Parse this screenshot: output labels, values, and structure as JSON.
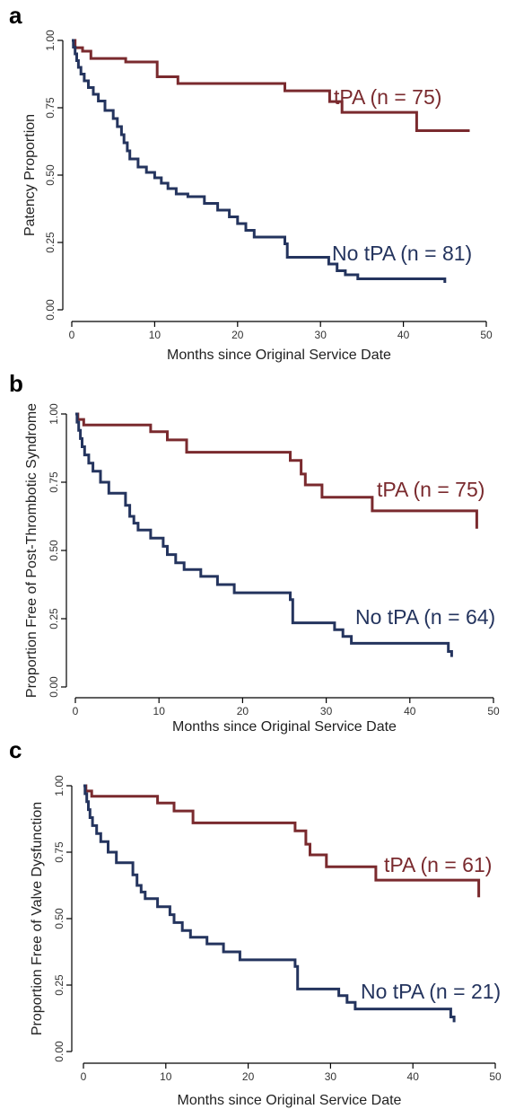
{
  "colors": {
    "tpa": "#7a2a2e",
    "no_tpa": "#24345e"
  },
  "chart_data": [
    {
      "panel": "a",
      "type": "line",
      "step": true,
      "xlabel": "Months since Original Service Date",
      "ylabel": "Patency Proportion",
      "xlim": [
        0,
        50
      ],
      "ylim": [
        0,
        1
      ],
      "xticks": [
        0,
        10,
        20,
        30,
        40,
        50
      ],
      "yticks": [
        "0.00",
        "0.25",
        "0.50",
        "0.75",
        "1.00"
      ],
      "series": [
        {
          "name": "tPA (n = 75)",
          "color": "#7a2a2e",
          "x": [
            0,
            0.4,
            1.3,
            2.3,
            6.5,
            10.3,
            12.8,
            25.7,
            31.1,
            32.6,
            41.6,
            48
          ],
          "y": [
            1.0,
            0.973,
            0.96,
            0.933,
            0.92,
            0.865,
            0.84,
            0.813,
            0.773,
            0.733,
            0.665,
            0.665
          ]
        },
        {
          "name": "No tPA (n = 81)",
          "color": "#24345e",
          "x": [
            0,
            0.2,
            0.4,
            0.6,
            0.8,
            1.1,
            1.5,
            2.0,
            2.6,
            3.2,
            4.0,
            5.0,
            5.5,
            6.0,
            6.3,
            6.7,
            7.0,
            8.0,
            9.0,
            10.0,
            10.8,
            11.6,
            12.6,
            14.0,
            16.0,
            17.6,
            19.0,
            20.0,
            21.0,
            22.0,
            25.7,
            26.0,
            31.0,
            32.0,
            33.0,
            34.5,
            45
          ],
          "y": [
            1.0,
            0.975,
            0.95,
            0.925,
            0.9,
            0.875,
            0.85,
            0.825,
            0.8,
            0.775,
            0.74,
            0.71,
            0.68,
            0.65,
            0.62,
            0.59,
            0.56,
            0.53,
            0.51,
            0.49,
            0.47,
            0.45,
            0.43,
            0.42,
            0.395,
            0.37,
            0.345,
            0.32,
            0.295,
            0.27,
            0.245,
            0.195,
            0.17,
            0.145,
            0.13,
            0.115,
            0.1
          ]
        }
      ]
    },
    {
      "panel": "b",
      "type": "line",
      "step": true,
      "xlabel": "Months since Original Service Date",
      "ylabel": "Proportion Free of Post-Thrombotic Syndrome",
      "xlim": [
        0,
        50
      ],
      "ylim": [
        0,
        1
      ],
      "xticks": [
        0,
        10,
        20,
        30,
        40,
        50
      ],
      "yticks": [
        "0.00",
        "0.25",
        "0.50",
        "0.75",
        "1.00"
      ],
      "series": [
        {
          "name": "tPA (n = 75)",
          "color": "#7a2a2e",
          "x": [
            0,
            0.3,
            1.0,
            9.0,
            11.0,
            13.3,
            25.7,
            27.0,
            27.5,
            29.5,
            35.5,
            48
          ],
          "y": [
            1.0,
            0.98,
            0.96,
            0.935,
            0.905,
            0.86,
            0.83,
            0.78,
            0.74,
            0.695,
            0.645,
            0.58
          ]
        },
        {
          "name": "No tPA (n = 64)",
          "color": "#24345e",
          "x": [
            0,
            0.2,
            0.4,
            0.6,
            0.8,
            1.1,
            1.6,
            2.1,
            3.0,
            4.0,
            6.0,
            6.5,
            7.0,
            7.5,
            9.0,
            10.5,
            11.0,
            12.0,
            13.0,
            15.0,
            17.0,
            19.0,
            25.7,
            26.0,
            31.0,
            32.0,
            33.0,
            44.6,
            45
          ],
          "y": [
            1.0,
            0.97,
            0.94,
            0.91,
            0.88,
            0.85,
            0.82,
            0.79,
            0.75,
            0.71,
            0.665,
            0.625,
            0.6,
            0.575,
            0.545,
            0.515,
            0.485,
            0.455,
            0.43,
            0.405,
            0.375,
            0.345,
            0.32,
            0.235,
            0.21,
            0.185,
            0.16,
            0.13,
            0.11
          ]
        }
      ]
    },
    {
      "panel": "c",
      "type": "line",
      "step": true,
      "xlabel": "Months since Original Service Date",
      "ylabel": "Proportion Free of Valve Dysfunction",
      "xlim": [
        0,
        50
      ],
      "ylim": [
        0,
        1
      ],
      "xticks": [
        0,
        10,
        20,
        30,
        40,
        50
      ],
      "yticks": [
        "0.00",
        "0.25",
        "0.50",
        "0.75",
        "1.00"
      ],
      "series": [
        {
          "name": "tPA (n = 61)",
          "color": "#7a2a2e",
          "x": [
            0,
            0.3,
            1.0,
            9.0,
            11.0,
            13.3,
            25.7,
            27.0,
            27.5,
            29.5,
            35.5,
            48
          ],
          "y": [
            1.0,
            0.98,
            0.96,
            0.935,
            0.905,
            0.86,
            0.83,
            0.78,
            0.74,
            0.695,
            0.645,
            0.58
          ]
        },
        {
          "name": "No tPA (n = 21)",
          "color": "#24345e",
          "x": [
            0,
            0.2,
            0.4,
            0.6,
            0.8,
            1.1,
            1.6,
            2.1,
            3.0,
            4.0,
            6.0,
            6.5,
            7.0,
            7.5,
            9.0,
            10.5,
            11.0,
            12.0,
            13.0,
            15.0,
            17.0,
            19.0,
            25.7,
            26.0,
            31.0,
            32.0,
            33.0,
            44.6,
            45
          ],
          "y": [
            1.0,
            0.97,
            0.94,
            0.91,
            0.88,
            0.85,
            0.82,
            0.79,
            0.75,
            0.71,
            0.665,
            0.625,
            0.6,
            0.575,
            0.545,
            0.515,
            0.485,
            0.455,
            0.43,
            0.405,
            0.375,
            0.345,
            0.32,
            0.235,
            0.21,
            0.185,
            0.16,
            0.13,
            0.11
          ]
        }
      ]
    }
  ]
}
